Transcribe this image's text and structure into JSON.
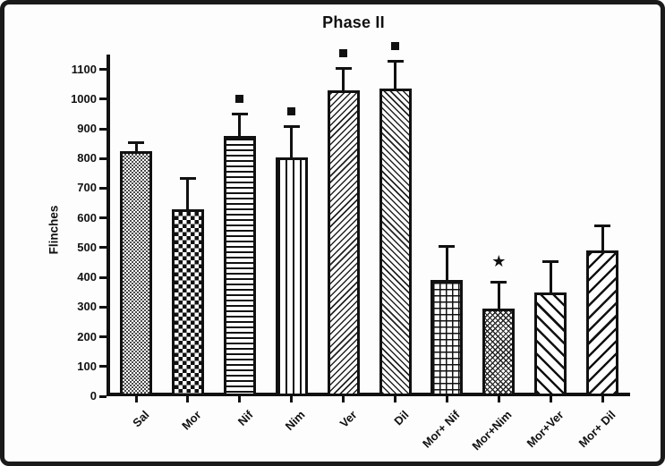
{
  "figure": {
    "border_color": "#1a1a1a",
    "background_color": "#fdfdfd",
    "ink_color": "#111111"
  },
  "chart_data": {
    "type": "bar",
    "title": "Phase II",
    "xlabel": "",
    "ylabel": "Flinches",
    "categories": [
      "Sal",
      "Mor",
      "Nif",
      "Nim",
      "Ver",
      "Dil",
      "Mor+ Nif",
      "Mor+Nim",
      "Mor+Ver",
      "Mor+ Dil"
    ],
    "values": [
      825,
      630,
      875,
      805,
      1030,
      1035,
      390,
      295,
      350,
      490
    ],
    "error_bars_plus": [
      30,
      105,
      75,
      105,
      75,
      95,
      115,
      90,
      105,
      85
    ],
    "significance_markers": [
      null,
      null,
      "square",
      "square",
      "square",
      "square",
      null,
      "star",
      null,
      null
    ],
    "marker_glyphs": {
      "square": "■",
      "star": "★"
    },
    "bar_patterns": [
      "fine-checker",
      "checker",
      "hlines",
      "vlines",
      "fine-diag-up",
      "fine-diag-down",
      "grid",
      "fine-crosshatch",
      "wide-diag-down",
      "wide-diag-up"
    ],
    "yticks": [
      0,
      100,
      200,
      300,
      400,
      500,
      600,
      700,
      800,
      900,
      1000,
      1100
    ],
    "ylim": [
      0,
      1150
    ],
    "grid": false,
    "legend": null,
    "bar_style": "black hatch on white, solid black outlines, SD error bars with caps"
  }
}
